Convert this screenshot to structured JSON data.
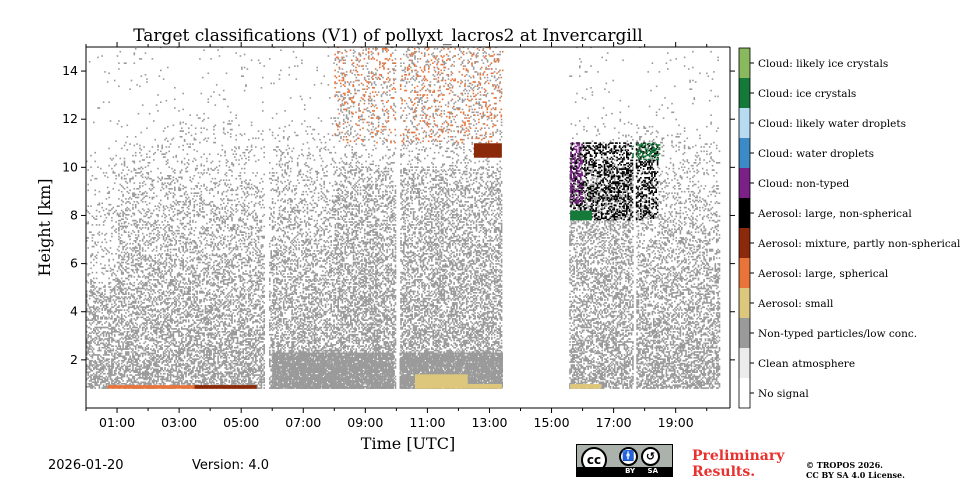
{
  "chart_data": {
    "type": "heatmap",
    "title": "Target classifications (V1) of pollyxt_lacros2 at Invercargill",
    "xlabel": "Time [UTC]",
    "ylabel": "Height [km]",
    "xlim_hours": [
      0,
      20.75
    ],
    "ylim_km": [
      0,
      15
    ],
    "x_ticks": [
      {
        "value": 1,
        "label": "01:00"
      },
      {
        "value": 3,
        "label": "03:00"
      },
      {
        "value": 5,
        "label": "05:00"
      },
      {
        "value": 7,
        "label": "07:00"
      },
      {
        "value": 9,
        "label": "09:00"
      },
      {
        "value": 11,
        "label": "11:00"
      },
      {
        "value": 13,
        "label": "13:00"
      },
      {
        "value": 15,
        "label": "15:00"
      },
      {
        "value": 17,
        "label": "17:00"
      },
      {
        "value": 19,
        "label": "19:00"
      }
    ],
    "y_ticks": [
      {
        "value": 2,
        "label": "2"
      },
      {
        "value": 4,
        "label": "4"
      },
      {
        "value": 6,
        "label": "6"
      },
      {
        "value": 8,
        "label": "8"
      },
      {
        "value": 10,
        "label": "10"
      },
      {
        "value": 12,
        "label": "12"
      },
      {
        "value": 14,
        "label": "14"
      }
    ],
    "classes": [
      {
        "value": 0,
        "label": "No signal",
        "color": "#ffffff"
      },
      {
        "value": 1,
        "label": "Clean atmosphere",
        "color": "#ececec"
      },
      {
        "value": 2,
        "label": "Non-typed particles/low conc.",
        "color": "#9a9a9a"
      },
      {
        "value": 3,
        "label": "Aerosol: small",
        "color": "#dcc77c"
      },
      {
        "value": 4,
        "label": "Aerosol: large, spherical",
        "color": "#e8743a"
      },
      {
        "value": 5,
        "label": "Aerosol: mixture, partly non-spherical",
        "color": "#8a2a0a"
      },
      {
        "value": 6,
        "label": "Aerosol: large, non-spherical",
        "color": "#000000"
      },
      {
        "value": 7,
        "label": "Cloud: non-typed",
        "color": "#7b2087"
      },
      {
        "value": 8,
        "label": "Cloud: water droplets",
        "color": "#3c8bc6"
      },
      {
        "value": 9,
        "label": "Cloud: likely water droplets",
        "color": "#b7dcf2"
      },
      {
        "value": 10,
        "label": "Cloud: ice crystals",
        "color": "#15793a"
      },
      {
        "value": 11,
        "label": "Cloud: likely ice crystals",
        "color": "#8ab85f"
      }
    ],
    "data_segments_hours": [
      [
        0.0,
        5.75
      ],
      [
        5.85,
        9.95
      ],
      [
        10.1,
        13.4
      ],
      [
        15.55,
        17.6
      ],
      [
        17.7,
        20.4
      ]
    ],
    "regions": [
      {
        "class": 2,
        "t": [
          0.0,
          20.4
        ],
        "h": [
          0.8,
          15.0
        ],
        "pattern": "dense-to-sparse speckle"
      },
      {
        "class": 2,
        "t": [
          6.0,
          9.9
        ],
        "h": [
          0.8,
          2.3
        ],
        "pattern": "dense"
      },
      {
        "class": 2,
        "t": [
          10.1,
          13.4
        ],
        "h": [
          0.8,
          2.3
        ],
        "pattern": "dense"
      },
      {
        "class": 3,
        "t": [
          10.6,
          12.3
        ],
        "h": [
          0.8,
          1.4
        ],
        "pattern": "solid"
      },
      {
        "class": 3,
        "t": [
          12.3,
          13.4
        ],
        "h": [
          0.8,
          1.0
        ],
        "pattern": "solid"
      },
      {
        "class": 3,
        "t": [
          15.6,
          16.6
        ],
        "h": [
          0.8,
          1.0
        ],
        "pattern": "solid"
      },
      {
        "class": 4,
        "t": [
          0.7,
          5.5
        ],
        "h": [
          0.8,
          0.95
        ],
        "pattern": "solid"
      },
      {
        "class": 4,
        "t": [
          8.0,
          13.4
        ],
        "h": [
          11.0,
          15.0
        ],
        "pattern": "speckle"
      },
      {
        "class": 5,
        "t": [
          3.5,
          5.5
        ],
        "h": [
          0.8,
          0.95
        ],
        "pattern": "solid"
      },
      {
        "class": 5,
        "t": [
          12.5,
          13.4
        ],
        "h": [
          10.4,
          11.0
        ],
        "pattern": "solid"
      },
      {
        "class": 6,
        "t": [
          15.6,
          18.4
        ],
        "h": [
          7.8,
          11.0
        ],
        "pattern": "speckle"
      },
      {
        "class": 7,
        "t": [
          15.6,
          16.0
        ],
        "h": [
          8.5,
          11.0
        ],
        "pattern": "speckle"
      },
      {
        "class": 10,
        "t": [
          15.6,
          16.3
        ],
        "h": [
          7.8,
          8.2
        ],
        "pattern": "solid"
      },
      {
        "class": 10,
        "t": [
          17.6,
          18.5
        ],
        "h": [
          10.3,
          11.0
        ],
        "pattern": "speckle"
      }
    ]
  },
  "footer": {
    "date": "2026-01-20",
    "version": "Version: 4.0",
    "preliminary_line1": "Preliminary",
    "preliminary_line2": "Results.",
    "copyright_line1": "© TROPOS 2026.",
    "copyright_line2": "CC BY SA 4.0 License.",
    "cc_badge_text": "BY SA",
    "cc_glyph": "cc"
  }
}
